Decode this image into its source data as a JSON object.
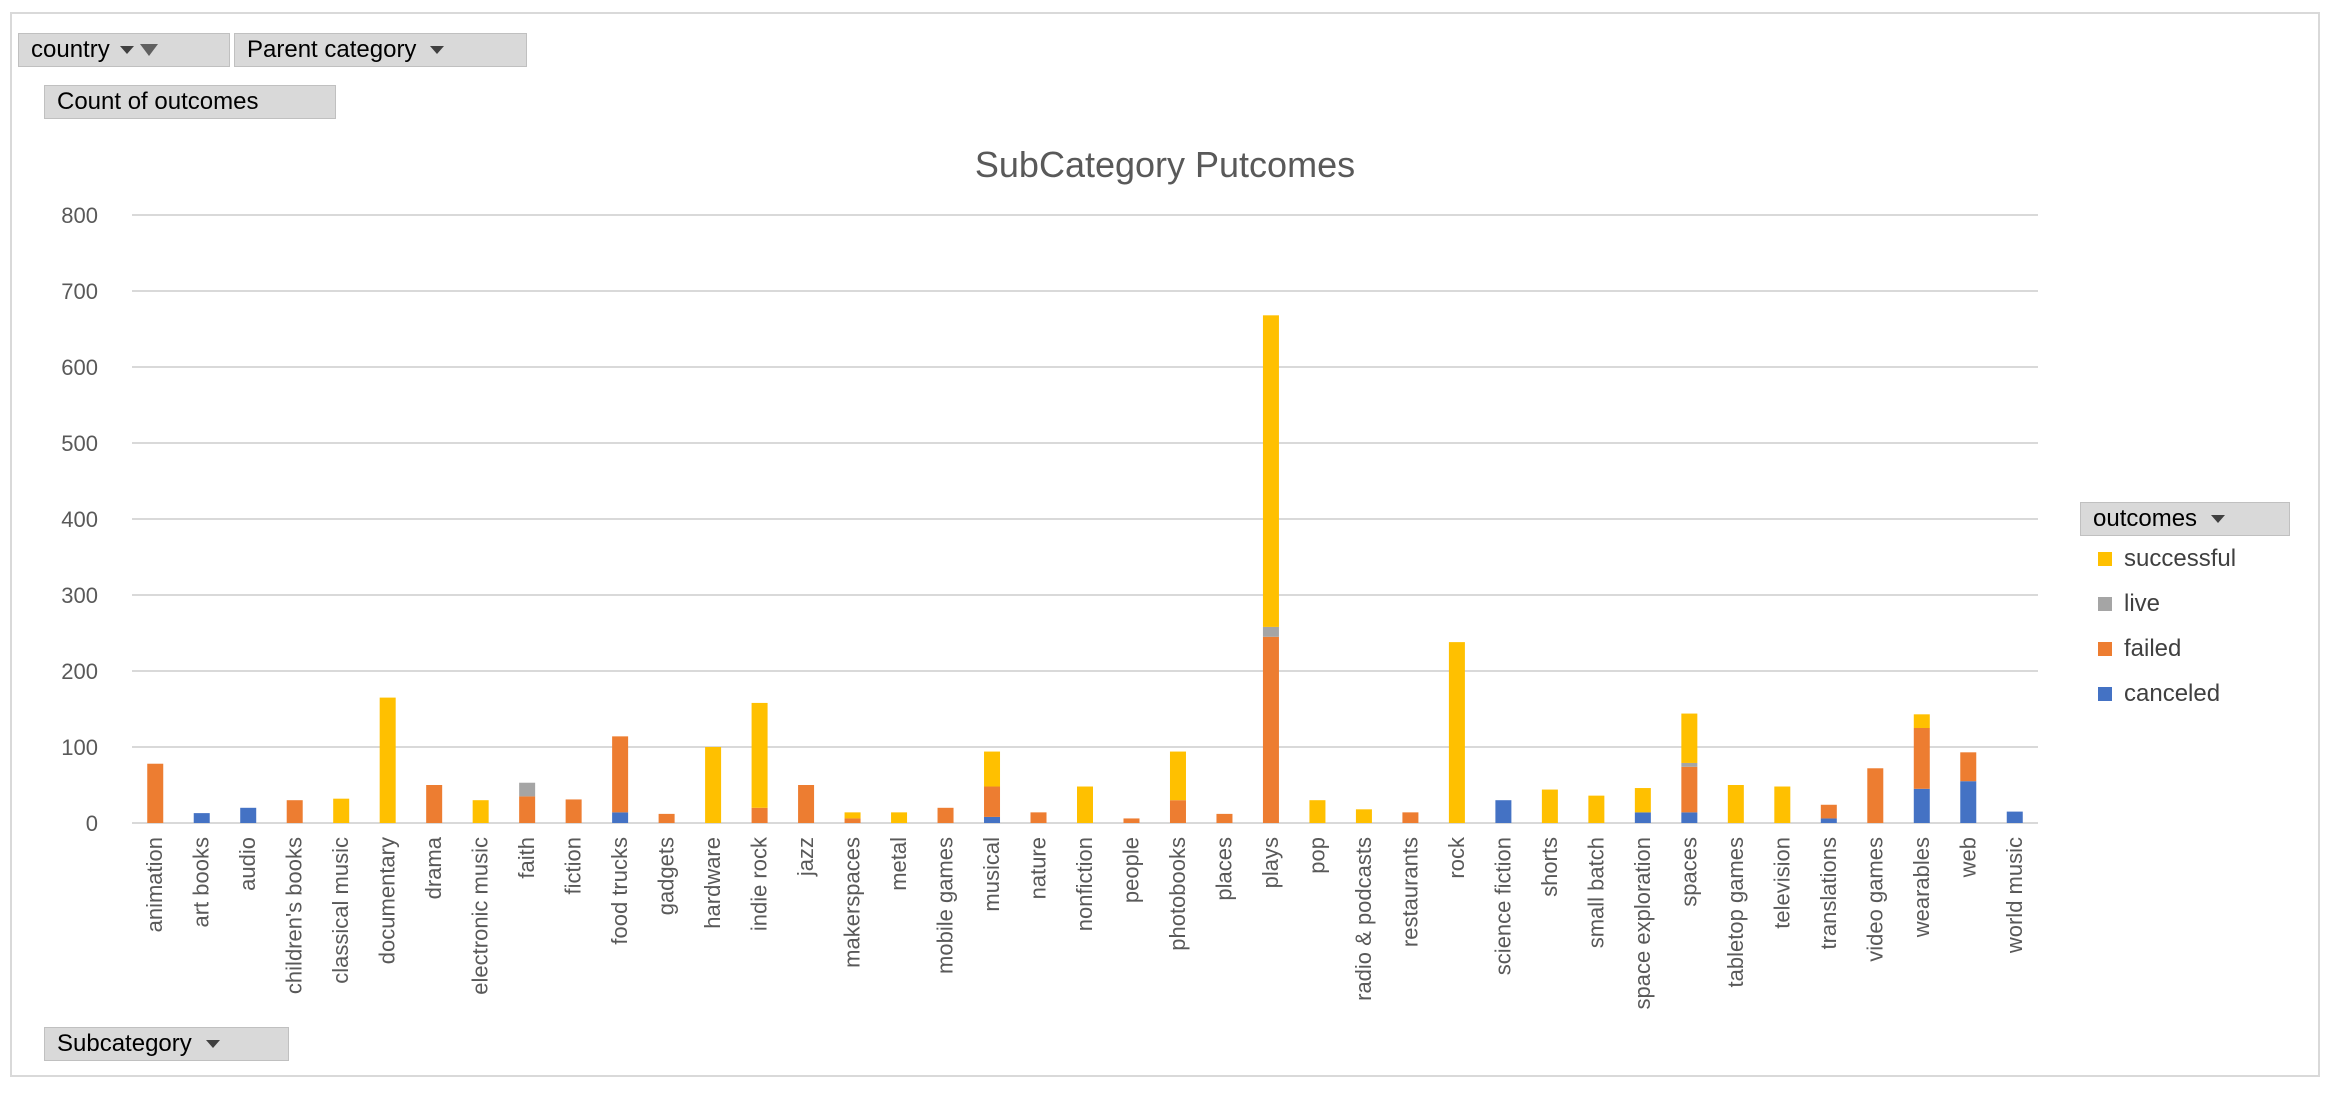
{
  "filters": {
    "country_label": "country",
    "parent_category_label": "Parent category",
    "value_field_label": "Count of outcomes",
    "axis_field_label": "Subcategory",
    "legend_field_label": "outcomes"
  },
  "chart_data": {
    "type": "bar",
    "stacked": true,
    "title": "SubCategory Putcomes",
    "xlabel": "",
    "ylabel": "",
    "ylim": [
      0,
      800
    ],
    "yticks": [
      0,
      100,
      200,
      300,
      400,
      500,
      600,
      700,
      800
    ],
    "grid": true,
    "legend_position": "right",
    "categories": [
      "animation",
      "art books",
      "audio",
      "children's books",
      "classical music",
      "documentary",
      "drama",
      "electronic music",
      "faith",
      "fiction",
      "food trucks",
      "gadgets",
      "hardware",
      "indie rock",
      "jazz",
      "makerspaces",
      "metal",
      "mobile games",
      "musical",
      "nature",
      "nonfiction",
      "people",
      "photobooks",
      "places",
      "plays",
      "pop",
      "radio & podcasts",
      "restaurants",
      "rock",
      "science fiction",
      "shorts",
      "small batch",
      "space exploration",
      "spaces",
      "tabletop games",
      "television",
      "translations",
      "video games",
      "wearables",
      "web",
      "world music"
    ],
    "series": [
      {
        "name": "canceled",
        "color": "#4472c4",
        "values": [
          0,
          13,
          20,
          0,
          0,
          0,
          0,
          0,
          0,
          0,
          14,
          0,
          0,
          0,
          0,
          0,
          0,
          0,
          8,
          0,
          0,
          0,
          0,
          0,
          0,
          0,
          0,
          0,
          0,
          30,
          0,
          0,
          14,
          14,
          0,
          0,
          6,
          0,
          45,
          55,
          15
        ]
      },
      {
        "name": "failed",
        "color": "#ed7d31",
        "values": [
          78,
          0,
          0,
          30,
          0,
          0,
          50,
          0,
          35,
          31,
          100,
          12,
          0,
          20,
          50,
          6,
          0,
          20,
          40,
          14,
          0,
          6,
          30,
          12,
          245,
          0,
          0,
          14,
          0,
          0,
          0,
          0,
          0,
          60,
          0,
          0,
          18,
          72,
          80,
          38,
          0
        ]
      },
      {
        "name": "live",
        "color": "#a5a5a5",
        "values": [
          0,
          0,
          0,
          0,
          0,
          0,
          0,
          0,
          18,
          0,
          0,
          0,
          0,
          0,
          0,
          0,
          0,
          0,
          0,
          0,
          0,
          0,
          0,
          0,
          13,
          0,
          0,
          0,
          0,
          0,
          0,
          0,
          0,
          5,
          0,
          0,
          0,
          0,
          0,
          0,
          0
        ]
      },
      {
        "name": "successful",
        "color": "#ffc000",
        "values": [
          0,
          0,
          0,
          0,
          32,
          165,
          0,
          30,
          0,
          0,
          0,
          0,
          100,
          138,
          0,
          8,
          14,
          0,
          46,
          0,
          48,
          0,
          64,
          0,
          410,
          30,
          18,
          0,
          238,
          0,
          44,
          36,
          32,
          65,
          50,
          48,
          0,
          0,
          18,
          0,
          0
        ]
      }
    ],
    "legend_order": [
      "successful",
      "live",
      "failed",
      "canceled"
    ]
  }
}
